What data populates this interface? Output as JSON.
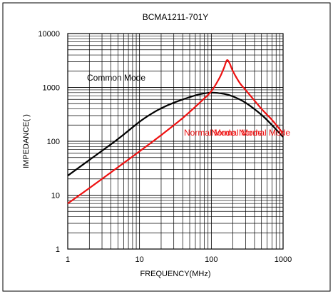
{
  "chart_data": {
    "type": "line",
    "title": "BCMA1211-701Y",
    "xlabel": "FREQUENCY(MHz)",
    "ylabel": "IMPEDANCE( )",
    "x_scale": "log",
    "y_scale": "log",
    "xlim": [
      1,
      1000
    ],
    "ylim": [
      1,
      10000
    ],
    "x_ticks": [
      1,
      10,
      100,
      1000
    ],
    "x_tick_labels": [
      "1",
      "10",
      "100",
      "1000"
    ],
    "y_ticks": [
      1,
      10,
      100,
      1000,
      10000
    ],
    "y_tick_labels": [
      "1",
      "10",
      "100",
      "1000",
      "10000"
    ],
    "grid": true,
    "series": [
      {
        "name": "Common Mode",
        "color": "#000000",
        "points": [
          [
            1,
            23
          ],
          [
            2,
            45
          ],
          [
            5,
            110
          ],
          [
            10,
            230
          ],
          [
            15,
            330
          ],
          [
            20,
            410
          ],
          [
            30,
            520
          ],
          [
            50,
            660
          ],
          [
            70,
            750
          ],
          [
            100,
            800
          ],
          [
            150,
            760
          ],
          [
            200,
            680
          ],
          [
            300,
            520
          ],
          [
            500,
            310
          ],
          [
            700,
            200
          ],
          [
            1000,
            120
          ]
        ]
      },
      {
        "name": "Normal Mode",
        "color": "#ee1111",
        "points": [
          [
            1,
            7
          ],
          [
            2,
            13.5
          ],
          [
            5,
            33
          ],
          [
            10,
            65
          ],
          [
            20,
            130
          ],
          [
            40,
            270
          ],
          [
            70,
            530
          ],
          [
            100,
            850
          ],
          [
            130,
            1500
          ],
          [
            150,
            2300
          ],
          [
            165,
            3200
          ],
          [
            180,
            2800
          ],
          [
            200,
            2000
          ],
          [
            250,
            1200
          ],
          [
            300,
            900
          ],
          [
            500,
            400
          ],
          [
            700,
            250
          ],
          [
            1000,
            140
          ]
        ]
      }
    ],
    "annotations": [
      {
        "text": "Common Mode",
        "series": "Common Mode"
      },
      {
        "text": "Normal Mode",
        "series": "Normal Mode"
      },
      {
        "text": "Normal Mode",
        "series": "Normal Mode"
      },
      {
        "text": "Normal Mode",
        "series": "Normal Mode"
      }
    ]
  }
}
